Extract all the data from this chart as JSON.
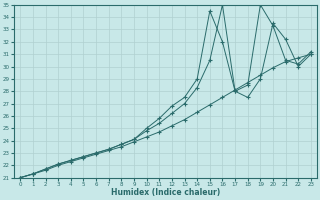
{
  "xlabel": "Humidex (Indice chaleur)",
  "background_color": "#c8e8e8",
  "grid_color": "#b0d0d0",
  "line_color": "#2a6b6b",
  "xlim": [
    -0.5,
    23.5
  ],
  "ylim": [
    21,
    35
  ],
  "xticks": [
    0,
    1,
    2,
    3,
    4,
    5,
    6,
    7,
    8,
    9,
    10,
    11,
    12,
    13,
    14,
    15,
    16,
    17,
    18,
    19,
    20,
    21,
    22,
    23
  ],
  "yticks": [
    21,
    22,
    23,
    24,
    25,
    26,
    27,
    28,
    29,
    30,
    31,
    32,
    33,
    34,
    35
  ],
  "line1_x": [
    0,
    1,
    2,
    3,
    4,
    5,
    6,
    7,
    8,
    9,
    10,
    11,
    12,
    13,
    14,
    15,
    16,
    17,
    18,
    19,
    20,
    21,
    22,
    23
  ],
  "line1_y": [
    21,
    21.3,
    21.6,
    22.0,
    22.3,
    22.6,
    22.9,
    23.2,
    23.5,
    23.9,
    24.3,
    24.7,
    25.2,
    25.7,
    26.3,
    26.9,
    27.5,
    28.1,
    28.7,
    29.3,
    29.9,
    30.4,
    30.7,
    31.0
  ],
  "line2_x": [
    0,
    1,
    2,
    3,
    4,
    5,
    6,
    7,
    8,
    9,
    10,
    11,
    12,
    13,
    14,
    15,
    16,
    17,
    18,
    19,
    20,
    21,
    22,
    23
  ],
  "line2_y": [
    21,
    21.3,
    21.7,
    22.1,
    22.4,
    22.7,
    23.0,
    23.3,
    23.7,
    24.1,
    25.0,
    25.8,
    26.8,
    27.5,
    29.0,
    34.5,
    32.0,
    28.0,
    28.5,
    35.0,
    33.3,
    30.5,
    30.2,
    31.2
  ],
  "line3_x": [
    0,
    1,
    2,
    3,
    4,
    5,
    6,
    7,
    8,
    9,
    10,
    11,
    12,
    13,
    14,
    15,
    16,
    17,
    18,
    19,
    20,
    21,
    22,
    23
  ],
  "line3_y": [
    21,
    21.3,
    21.7,
    22.1,
    22.4,
    22.7,
    23.0,
    23.3,
    23.7,
    24.1,
    24.8,
    25.4,
    26.2,
    27.0,
    28.3,
    30.5,
    35.0,
    28.0,
    27.5,
    29.0,
    33.5,
    32.2,
    30.0,
    31.0
  ]
}
